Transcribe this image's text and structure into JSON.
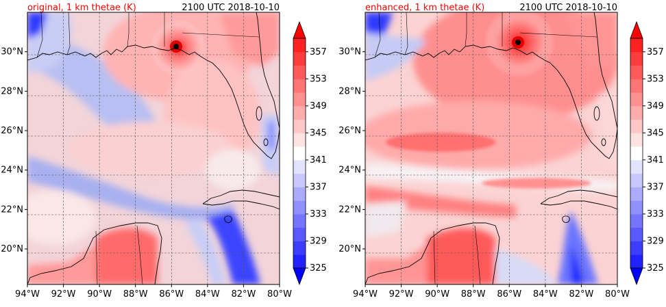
{
  "figure": {
    "valid_time": "2100 UTC 2018-10-10",
    "colors": {
      "title_accent": "#ff0000",
      "text": "#000000"
    }
  },
  "chart_data": [
    {
      "type": "heatmap",
      "title": "original, 1 km thetae (K)",
      "time_label": "2100 UTC 2018-10-10",
      "variable": "1 km thetae",
      "units": "K",
      "x_ticks": [
        "94°W",
        "92°W",
        "90°W",
        "88°W",
        "86°W",
        "84°W",
        "82°W",
        "80°W"
      ],
      "y_ticks": [
        "20°N",
        "22°N",
        "24°N",
        "26°N",
        "28°N",
        "30°N"
      ],
      "x_range_lon": [
        -94,
        -80
      ],
      "y_range_lat": [
        18.2,
        32.0
      ],
      "storm_center": {
        "lon": -85.7,
        "lat": 30.4
      },
      "colorbar": {
        "levels": [
          325,
          327,
          329,
          331,
          333,
          335,
          337,
          339,
          341,
          343,
          345,
          347,
          349,
          351,
          353,
          355,
          357,
          359
        ],
        "tick_labels": [
          "325",
          "329",
          "333",
          "337",
          "341",
          "345",
          "349",
          "353",
          "357"
        ],
        "extend": "both"
      }
    },
    {
      "type": "heatmap",
      "title": "enhanced, 1 km thetae (K)",
      "time_label": "2100 UTC 2018-10-10",
      "variable": "1 km thetae",
      "units": "K",
      "x_ticks": [
        "94°W",
        "92°W",
        "90°W",
        "88°W",
        "86°W",
        "84°W",
        "82°W",
        "80°W"
      ],
      "y_ticks": [
        "20°N",
        "22°N",
        "24°N",
        "26°N",
        "28°N",
        "30°N"
      ],
      "x_range_lon": [
        -94,
        -80
      ],
      "y_range_lat": [
        18.2,
        32.0
      ],
      "storm_center": {
        "lon": -85.4,
        "lat": 30.6
      },
      "colorbar": {
        "levels": [
          325,
          327,
          329,
          331,
          333,
          335,
          337,
          339,
          341,
          343,
          345,
          347,
          349,
          351,
          353,
          355,
          357,
          359
        ],
        "tick_labels": [
          "325",
          "329",
          "333",
          "337",
          "341",
          "345",
          "349",
          "353",
          "357"
        ],
        "extend": "both"
      }
    }
  ]
}
